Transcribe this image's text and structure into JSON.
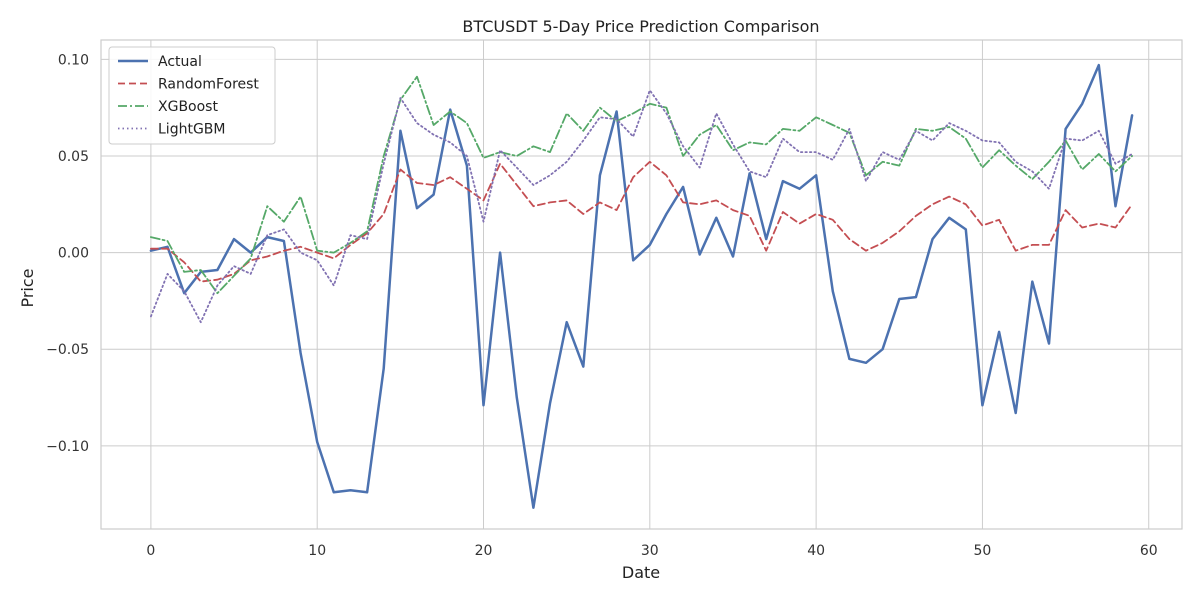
{
  "chart_data": {
    "type": "line",
    "title": "BTCUSDT 5-Day Price Prediction Comparison",
    "xlabel": "Date",
    "ylabel": "Price",
    "xlim": [
      -3,
      62
    ],
    "ylim": [
      -0.143,
      0.11
    ],
    "xticks": [
      "0",
      "10",
      "20",
      "30",
      "40",
      "50",
      "60"
    ],
    "xtick_values": [
      0,
      10,
      20,
      30,
      40,
      50,
      60
    ],
    "yticks": [
      "−0.10",
      "−0.05",
      "0.00",
      "0.05",
      "0.10"
    ],
    "ytick_values": [
      -0.1,
      -0.05,
      0,
      0.05,
      0.1
    ],
    "grid": true,
    "legend_position": "top-left",
    "x": [
      0,
      1,
      2,
      3,
      4,
      5,
      6,
      7,
      8,
      9,
      10,
      11,
      12,
      13,
      14,
      15,
      16,
      17,
      18,
      19,
      20,
      21,
      22,
      23,
      24,
      25,
      26,
      27,
      28,
      29,
      30,
      31,
      32,
      33,
      34,
      35,
      36,
      37,
      38,
      39,
      40,
      41,
      42,
      43,
      44,
      45,
      46,
      47,
      48,
      49,
      50,
      51,
      52,
      53,
      54,
      55,
      56,
      57,
      58,
      59
    ],
    "series": [
      {
        "name": "Actual",
        "color": "#4c72b0",
        "style": "solid",
        "values": [
          0.001,
          0.003,
          -0.021,
          -0.01,
          -0.009,
          0.007,
          0.0,
          0.008,
          0.006,
          -0.052,
          -0.098,
          -0.124,
          -0.123,
          -0.124,
          -0.06,
          0.063,
          0.023,
          0.03,
          0.074,
          0.045,
          -0.079,
          0.0,
          -0.075,
          -0.132,
          -0.078,
          -0.036,
          -0.059,
          0.04,
          0.073,
          -0.004,
          0.004,
          0.02,
          0.034,
          -0.001,
          0.018,
          -0.002,
          0.041,
          0.007,
          0.037,
          0.033,
          0.04,
          -0.02,
          -0.055,
          -0.057,
          -0.05,
          -0.024,
          -0.023,
          0.007,
          0.018,
          0.012,
          -0.079,
          -0.041,
          -0.083,
          -0.015,
          -0.047,
          0.064,
          0.077,
          0.097,
          0.024,
          0.071
        ]
      },
      {
        "name": "RandomForest",
        "color": "#c44e52",
        "style": "dashed",
        "values": [
          0.002,
          0.002,
          -0.005,
          -0.015,
          -0.014,
          -0.011,
          -0.004,
          -0.002,
          0.001,
          0.003,
          0.0,
          -0.003,
          0.004,
          0.01,
          0.02,
          0.043,
          0.036,
          0.035,
          0.039,
          0.033,
          0.027,
          0.046,
          0.035,
          0.024,
          0.026,
          0.027,
          0.02,
          0.026,
          0.022,
          0.039,
          0.047,
          0.04,
          0.026,
          0.025,
          0.027,
          0.022,
          0.019,
          0.001,
          0.021,
          0.015,
          0.02,
          0.017,
          0.007,
          0.001,
          0.005,
          0.011,
          0.019,
          0.025,
          0.029,
          0.025,
          0.014,
          0.017,
          0.001,
          0.004,
          0.004,
          0.022,
          0.013,
          0.015,
          0.013,
          0.025
        ]
      },
      {
        "name": "XGBoost",
        "color": "#55a868",
        "style": "dashdot",
        "values": [
          0.008,
          0.006,
          -0.01,
          -0.009,
          -0.021,
          -0.012,
          -0.003,
          0.024,
          0.016,
          0.029,
          0.001,
          0.0,
          0.005,
          0.011,
          0.05,
          0.079,
          0.091,
          0.066,
          0.073,
          0.067,
          0.049,
          0.052,
          0.05,
          0.055,
          0.052,
          0.072,
          0.063,
          0.075,
          0.068,
          0.072,
          0.077,
          0.075,
          0.05,
          0.061,
          0.066,
          0.053,
          0.057,
          0.056,
          0.064,
          0.063,
          0.07,
          0.066,
          0.062,
          0.04,
          0.047,
          0.045,
          0.064,
          0.063,
          0.065,
          0.059,
          0.044,
          0.053,
          0.045,
          0.038,
          0.047,
          0.058,
          0.043,
          0.051,
          0.042,
          0.05
        ]
      },
      {
        "name": "LightGBM",
        "color": "#8172b2",
        "style": "dotted",
        "values": [
          -0.033,
          -0.011,
          -0.02,
          -0.036,
          -0.017,
          -0.007,
          -0.011,
          0.009,
          0.012,
          0.0,
          -0.004,
          -0.017,
          0.009,
          0.007,
          0.046,
          0.08,
          0.067,
          0.061,
          0.057,
          0.05,
          0.016,
          0.053,
          0.044,
          0.035,
          0.04,
          0.047,
          0.058,
          0.07,
          0.069,
          0.06,
          0.084,
          0.072,
          0.055,
          0.044,
          0.072,
          0.056,
          0.042,
          0.039,
          0.059,
          0.052,
          0.052,
          0.048,
          0.064,
          0.037,
          0.052,
          0.048,
          0.063,
          0.058,
          0.067,
          0.063,
          0.058,
          0.057,
          0.047,
          0.042,
          0.033,
          0.059,
          0.058,
          0.063,
          0.046,
          0.051
        ]
      }
    ]
  }
}
